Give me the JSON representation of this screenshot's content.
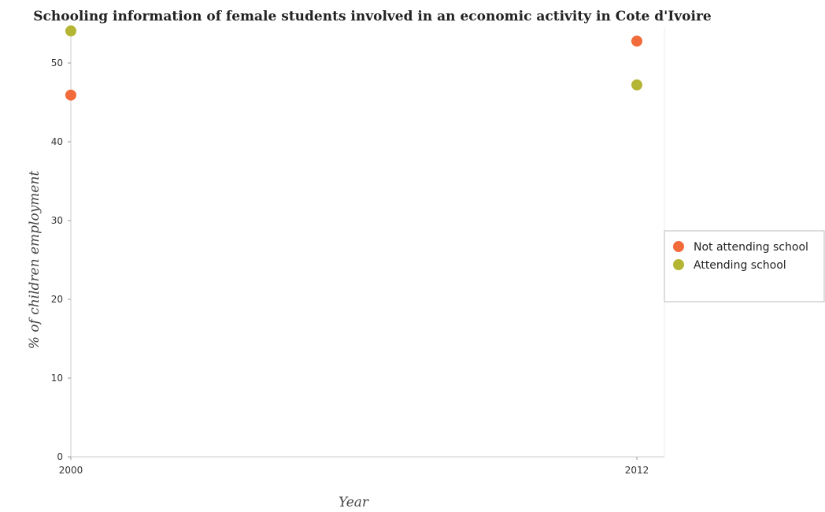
{
  "chart_data": {
    "type": "scatter",
    "title": "Schooling information of female students involved in an economic activity in Cote d'Ivoire",
    "xlabel": "Year",
    "ylabel": "% of children employment",
    "categories": [
      "2000",
      "2012"
    ],
    "ylim": [
      0,
      54.5
    ],
    "yticks": [
      0,
      10,
      20,
      30,
      40,
      50
    ],
    "grid": false,
    "legend_position": "right",
    "series": [
      {
        "name": "Not attending school",
        "color": "#f26b3a",
        "values": [
          45.93,
          52.78
        ]
      },
      {
        "name": "Attending school",
        "color": "#b5b534",
        "values": [
          54.07,
          47.22
        ]
      }
    ]
  }
}
